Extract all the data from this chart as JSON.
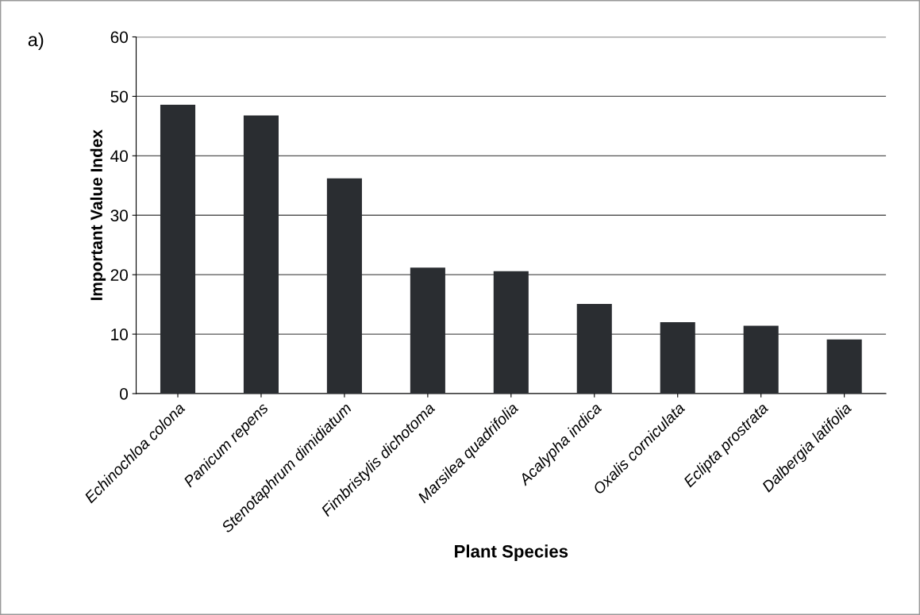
{
  "chart_data": {
    "type": "bar",
    "categories": [
      "Echinochloa colona",
      "Panicum repens",
      "Stenotaphrum dimidiatum",
      "Fimbristylis dichotoma",
      "Marsilea quadrifolia",
      "Acalypha indica",
      "Oxalis corniculata",
      "Eclipta prostrata",
      "Dalbergia latifolia"
    ],
    "values": [
      48.6,
      46.8,
      36.2,
      21.2,
      20.6,
      15.1,
      12.0,
      11.4,
      9.1
    ],
    "color": "#2a2d31",
    "xlabel": "Plant Species",
    "ylabel": "Important Value Index",
    "ylim": [
      0,
      60
    ],
    "yticks": [
      0,
      10,
      20,
      30,
      40,
      50,
      60
    ],
    "grid": "y",
    "legend": false,
    "annotations": [
      "a)"
    ]
  }
}
